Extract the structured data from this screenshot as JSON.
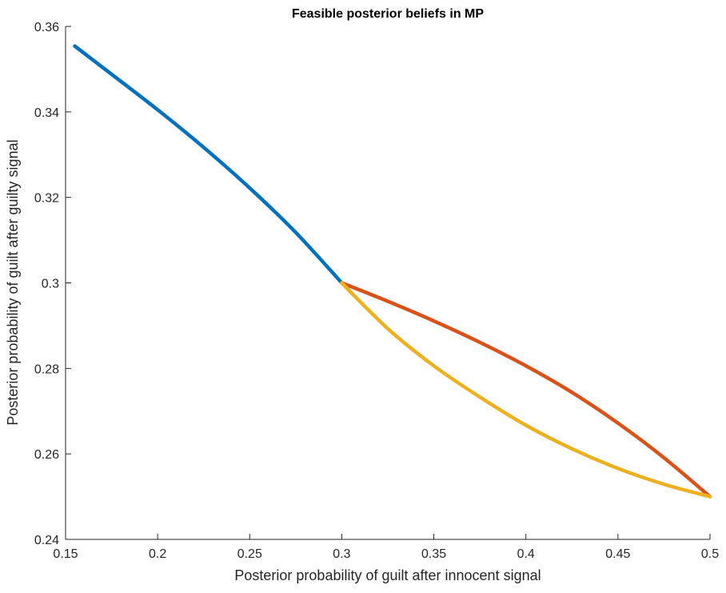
{
  "chart_data": {
    "type": "line",
    "title": "Feasible posterior beliefs in MP",
    "xlabel": "Posterior probability of guilt after innocent signal",
    "ylabel": "Posterior probability of guilt after guilty signal",
    "xlim": [
      0.15,
      0.5
    ],
    "ylim": [
      0.24,
      0.36
    ],
    "xticks": [
      0.15,
      0.2,
      0.25,
      0.3,
      0.35,
      0.4,
      0.45,
      0.5
    ],
    "yticks": [
      0.24,
      0.26,
      0.28,
      0.3,
      0.32,
      0.34,
      0.36
    ],
    "xtick_labels": [
      "0.15",
      "0.2",
      "0.25",
      "0.3",
      "0.35",
      "0.4",
      "0.45",
      "0.5"
    ],
    "ytick_labels": [
      "0.24",
      "0.26",
      "0.28",
      "0.3",
      "0.32",
      "0.34",
      "0.36"
    ],
    "grid": false,
    "series": [
      {
        "color": "#0072BD",
        "x": [
          0.155,
          0.175,
          0.2,
          0.225,
          0.25,
          0.275,
          0.3
        ],
        "y": [
          0.3554,
          0.3488,
          0.3405,
          0.3317,
          0.3222,
          0.3118,
          0.3
        ]
      },
      {
        "color": "#D95319",
        "x": [
          0.3,
          0.325,
          0.35,
          0.375,
          0.4,
          0.425,
          0.45,
          0.475,
          0.5
        ],
        "y": [
          0.3,
          0.2957,
          0.2911,
          0.2861,
          0.2806,
          0.2744,
          0.2672,
          0.2591,
          0.25
        ]
      },
      {
        "color": "#EDB120",
        "x": [
          0.3,
          0.325,
          0.35,
          0.375,
          0.4,
          0.425,
          0.45,
          0.475,
          0.5
        ],
        "y": [
          0.3,
          0.2893,
          0.2806,
          0.2733,
          0.2667,
          0.2612,
          0.2566,
          0.2529,
          0.25
        ]
      }
    ]
  }
}
